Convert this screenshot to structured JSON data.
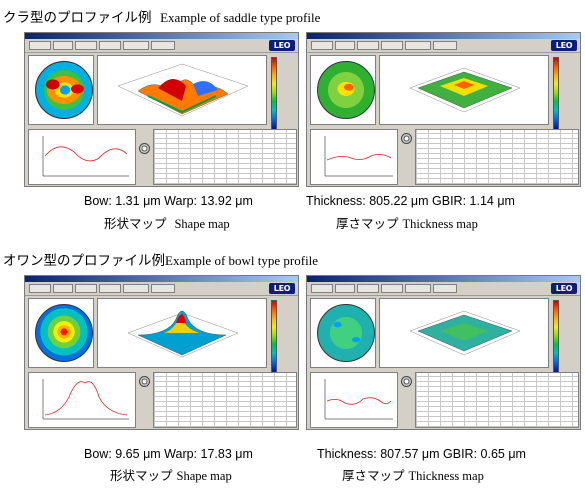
{
  "sections": {
    "saddle": {
      "title_jp": "クラ型のプロファイル例",
      "title_en": "Example of saddle type profile",
      "shape": {
        "caption": "Bow: 1.31 μm   Warp: 13.92 μm",
        "sub_jp": "形状マップ",
        "sub_en": "Shape map"
      },
      "thickness": {
        "caption": "Thickness: 805.22 μm   GBIR: 1.14 μm",
        "sub_jp": "厚さマップ",
        "sub_en": "Thickness map"
      }
    },
    "bowl": {
      "title_jp": "オワン型のプロファイル例",
      "title_en": "Example of bowl type profile",
      "shape": {
        "caption": "Bow: 9.65 μm   Warp: 17.83 μm",
        "sub_jp": "形状マップ",
        "sub_en": "Shape map"
      },
      "thickness": {
        "caption": "Thickness: 807.57 μm   GBIR: 0.65 μm",
        "sub_jp": "厚さマップ",
        "sub_en": "Thickness map"
      }
    }
  },
  "app": {
    "logo": "LEO"
  },
  "icons": [
    "titlebar",
    "toolbar-button-icon",
    "gauge-icon",
    "colorbar"
  ]
}
